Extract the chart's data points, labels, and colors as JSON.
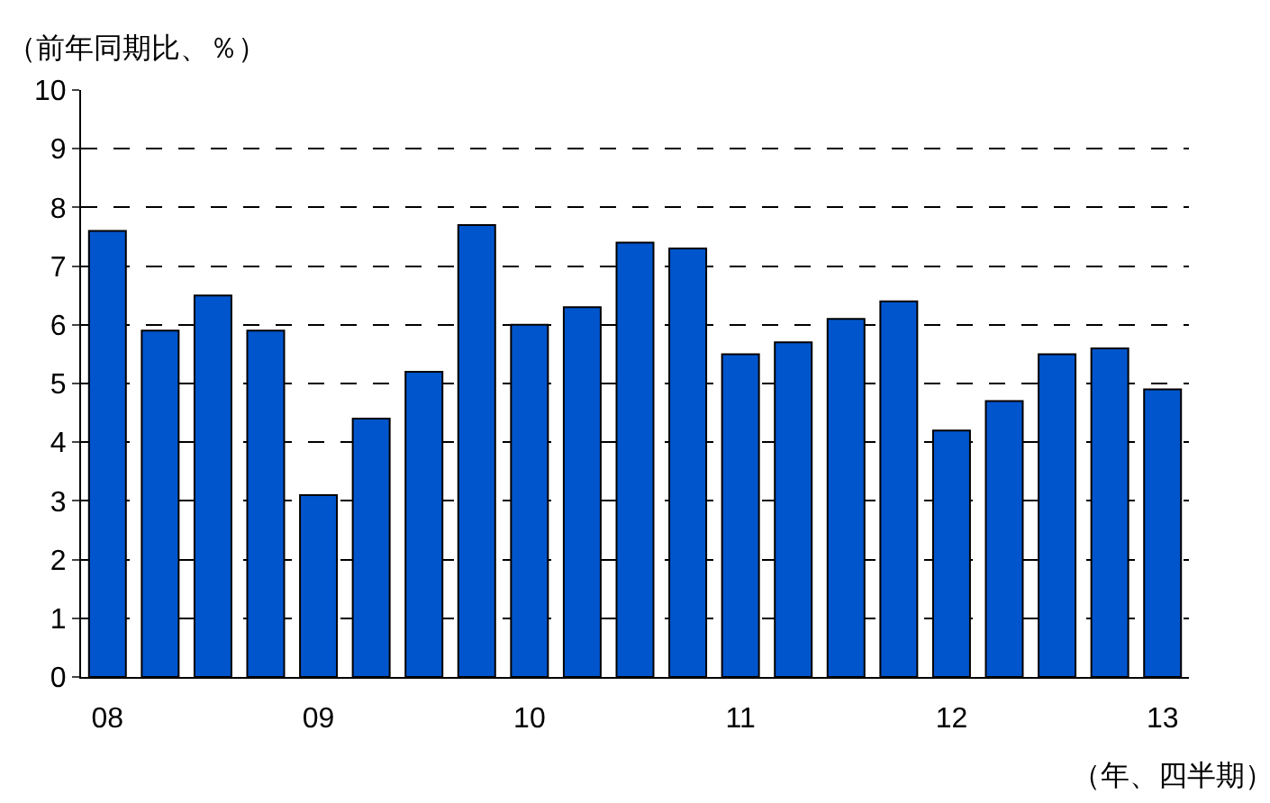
{
  "chart_data": {
    "type": "bar",
    "xlabel": "（年、四半期）",
    "ylabel": "（前年同期比、％）",
    "categories": [
      "08",
      null,
      null,
      null,
      "09",
      null,
      null,
      null,
      "10",
      null,
      null,
      null,
      "11",
      null,
      null,
      null,
      "12",
      null,
      null,
      null,
      "13"
    ],
    "values": [
      7.6,
      5.9,
      6.5,
      5.9,
      3.1,
      4.4,
      5.2,
      7.7,
      6.0,
      6.3,
      7.4,
      7.3,
      5.5,
      5.7,
      6.1,
      6.4,
      4.2,
      4.7,
      5.5,
      5.6,
      4.9
    ],
    "color": "#0055cc",
    "ylim": [
      0,
      10
    ],
    "yticks": [
      0,
      1,
      2,
      3,
      4,
      5,
      6,
      7,
      8,
      9,
      10
    ],
    "grid": "y"
  }
}
